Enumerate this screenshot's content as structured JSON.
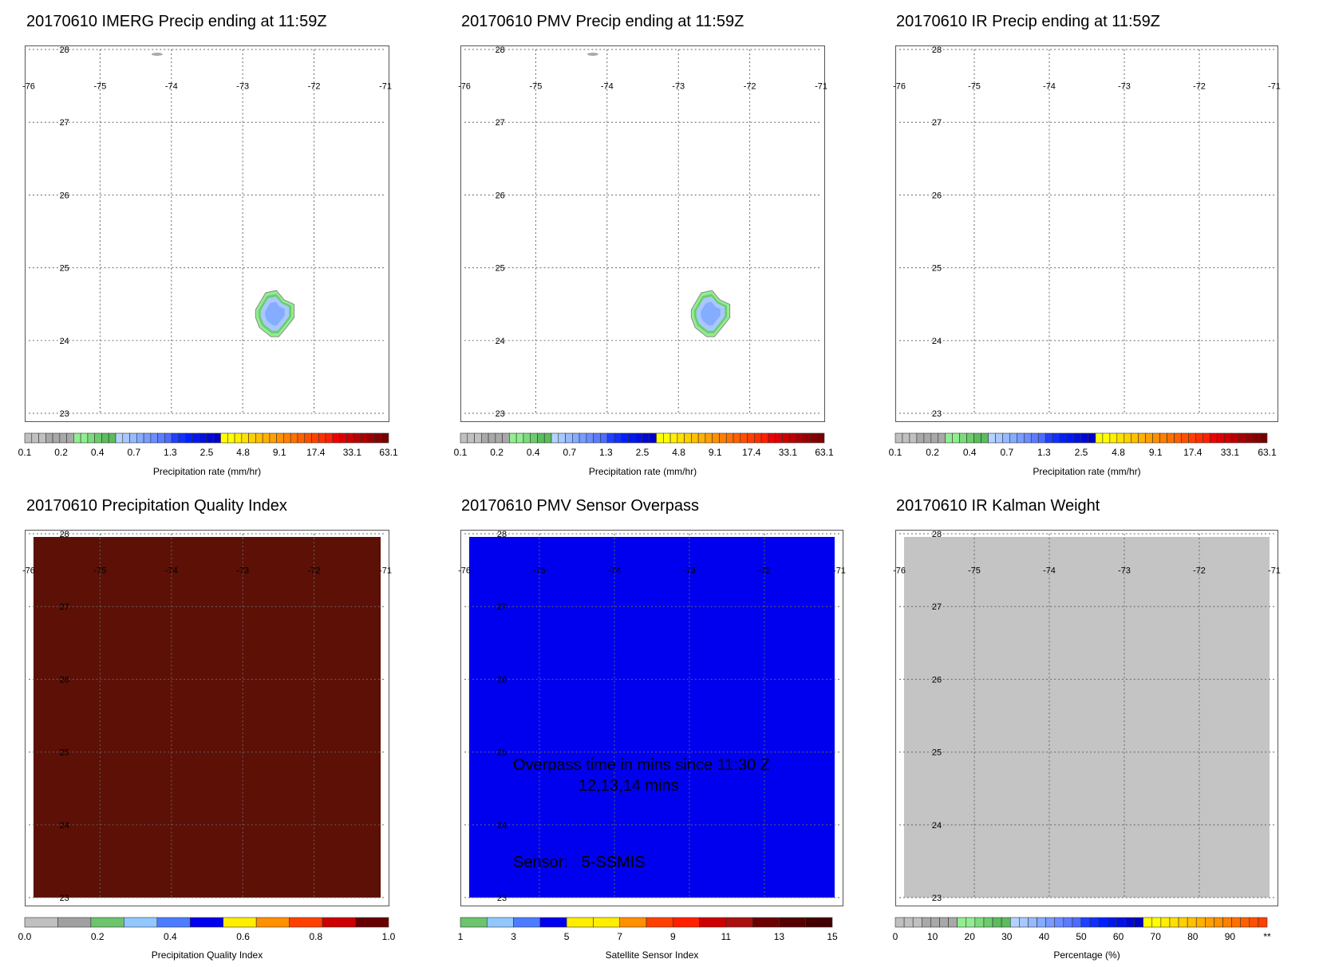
{
  "grid": {
    "lon_ticks": [
      "-76",
      "-75",
      "-74",
      "-73",
      "-72",
      "-71"
    ],
    "lat_ticks": [
      "28",
      "27",
      "26",
      "25",
      "24",
      "23"
    ]
  },
  "colors": {
    "precip_bar": [
      "#c0c0c0",
      "#c0c0c0",
      "#c0c0c0",
      "#a8a8a8",
      "#a8a8a8",
      "#a8a8a8",
      "#a8a8a8",
      "#90ee90",
      "#90ee90",
      "#7cdc7c",
      "#6ccc6c",
      "#5cbc5c",
      "#5cbc5c",
      "#b4d2ff",
      "#a8c8ff",
      "#96baff",
      "#84acff",
      "#789cff",
      "#6c8cff",
      "#5c7cff",
      "#4c6cff",
      "#2040ff",
      "#1030ff",
      "#0020ff",
      "#0018f0",
      "#0010e0",
      "#0008d0",
      "#0000c8",
      "#ffff00",
      "#ffff00",
      "#ffef00",
      "#ffe000",
      "#ffd000",
      "#ffc000",
      "#ffb000",
      "#ffa000",
      "#ff9000",
      "#ff8000",
      "#ff7000",
      "#ff6000",
      "#ff5000",
      "#ff4000",
      "#ff3000",
      "#ff2000",
      "#ee0000",
      "#dd0000",
      "#cc0000",
      "#bb0000",
      "#aa0000",
      "#990000",
      "#880000",
      "#770000"
    ],
    "quality_bar": [
      "#c0c0c0",
      "#a0a0a0",
      "#6cc46c",
      "#90c8ff",
      "#4c7cff",
      "#0000ee",
      "#ffee00",
      "#ff9000",
      "#ff4000",
      "#cc0000",
      "#660000"
    ],
    "sensor_bar": [
      "#6cc46c",
      "#90c8ff",
      "#4c7cff",
      "#0000ee",
      "#ffee00",
      "#ffee00",
      "#ff9000",
      "#ff4000",
      "#ff2000",
      "#cc0000",
      "#aa1010",
      "#6b0000",
      "#550000",
      "#440000"
    ],
    "kalman_bar": [
      "#c0c0c0",
      "#c0c0c0",
      "#c0c0c0",
      "#a8a8a8",
      "#a8a8a8",
      "#a8a8a8",
      "#a8a8a8",
      "#90ee90",
      "#90ee90",
      "#7cdc7c",
      "#6ccc6c",
      "#5cbc5c",
      "#5cbc5c",
      "#b4d2ff",
      "#a8c8ff",
      "#96baff",
      "#84acff",
      "#789cff",
      "#6c8cff",
      "#5c7cff",
      "#4c6cff",
      "#2040ff",
      "#1030ff",
      "#0020ff",
      "#0018f0",
      "#0010e0",
      "#0008d0",
      "#0000c8",
      "#ffff00",
      "#ffff00",
      "#ffef00",
      "#ffe000",
      "#ffd000",
      "#ffc000",
      "#ffb000",
      "#ffa000",
      "#ff9000",
      "#ff8000",
      "#ff7000",
      "#ff6000",
      "#ff5000",
      "#ff4000"
    ],
    "quality_fill": "#5c1006",
    "sensor_fill": "#0000ee",
    "kalman_fill": "#c4c4c4"
  },
  "panels": [
    {
      "title": "20170610 IMERG Precip ending at 11:59Z"
    },
    {
      "title": "20170610 PMV Precip ending at 11:59Z"
    },
    {
      "title": "20170610 IR Precip ending at 11:59Z"
    },
    {
      "title": "20170610 Precipitation Quality Index"
    },
    {
      "title": "20170610 PMV Sensor Overpass",
      "overpass_line1": "Overpass time in mins since 11:30 Z",
      "overpass_line2": "12,13,14 mins",
      "sensor_text": "Sensor:   5-SSMIS"
    },
    {
      "title": "20170610 IR Kalman Weight"
    }
  ],
  "chart_data": [
    {
      "type": "heatmap",
      "title": "20170610 IMERG Precip ending at 11:59Z",
      "xlim": [
        -76,
        -71
      ],
      "ylim": [
        23,
        28
      ],
      "colorbar_label": "Precipitation rate (mm/hr)",
      "colorbar_ticks": [
        "0.1",
        "0.2",
        "0.4",
        "0.7",
        "1.3",
        "2.5",
        "4.8",
        "9.1",
        "17.4",
        "33.1",
        "63.1"
      ],
      "precip_cell": {
        "center_lon": -72.55,
        "center_lat": 24.37,
        "max_rate_mm_hr": 1.3
      }
    },
    {
      "type": "heatmap",
      "title": "20170610 PMV Precip ending at 11:59Z",
      "xlim": [
        -76,
        -71
      ],
      "ylim": [
        23,
        28
      ],
      "colorbar_label": "Precipitation rate (mm/hr)",
      "colorbar_ticks": [
        "0.1",
        "0.2",
        "0.4",
        "0.7",
        "1.3",
        "2.5",
        "4.8",
        "9.1",
        "17.4",
        "33.1",
        "63.1"
      ],
      "precip_cell": {
        "center_lon": -72.55,
        "center_lat": 24.37,
        "max_rate_mm_hr": 1.3
      }
    },
    {
      "type": "heatmap",
      "title": "20170610 IR Precip ending at 11:59Z",
      "xlim": [
        -76,
        -71
      ],
      "ylim": [
        23,
        28
      ],
      "colorbar_label": "Precipitation rate (mm/hr)",
      "colorbar_ticks": [
        "0.1",
        "0.2",
        "0.4",
        "0.7",
        "1.3",
        "2.5",
        "4.8",
        "9.1",
        "17.4",
        "33.1",
        "63.1"
      ]
    },
    {
      "type": "heatmap",
      "title": "20170610 Precipitation Quality Index",
      "xlim": [
        -76,
        -71
      ],
      "ylim": [
        23,
        28
      ],
      "colorbar_label": "Precipitation Quality Index",
      "colorbar_ticks": [
        "0.0",
        "0.2",
        "0.4",
        "0.6",
        "0.8",
        "1.0"
      ],
      "uniform_value": 1.0
    },
    {
      "type": "heatmap",
      "title": "20170610 PMV Sensor Overpass",
      "xlim": [
        -76,
        -71
      ],
      "ylim": [
        23,
        28
      ],
      "colorbar_label": "Satellite Sensor Index",
      "colorbar_ticks": [
        "1",
        "3",
        "5",
        "7",
        "9",
        "11",
        "13",
        "15"
      ],
      "uniform_value": 5
    },
    {
      "type": "heatmap",
      "title": "20170610 IR Kalman Weight",
      "xlim": [
        -76,
        -71
      ],
      "ylim": [
        23,
        28
      ],
      "colorbar_label": "Percentage (%)",
      "colorbar_ticks": [
        "0",
        "10",
        "20",
        "30",
        "40",
        "50",
        "60",
        "70",
        "80",
        "90",
        "**"
      ],
      "uniform_value": 0
    }
  ]
}
